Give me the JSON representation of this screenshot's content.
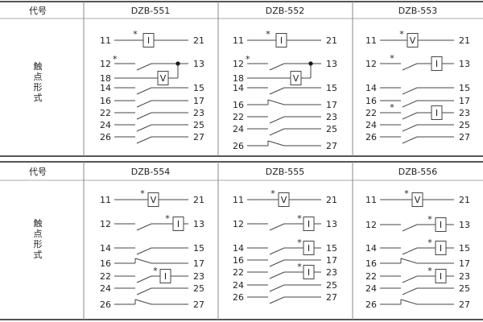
{
  "tables": [
    {
      "header_label": "代号",
      "side_label": [
        "触",
        "点",
        "形",
        "式"
      ],
      "models": [
        {
          "code": "DZB-551",
          "circuits": [
            {
              "left": "11",
              "right": "21",
              "coil": "I",
              "star": true
            },
            {
              "left": "12",
              "right": "13",
              "coil": null,
              "star": true
            },
            {
              "left": "18",
              "right": "",
              "coil": "V",
              "star": false
            },
            {
              "left": "14",
              "right": "15",
              "coil": null,
              "star": false
            },
            {
              "left": "16",
              "right": "17",
              "coil": null,
              "star": false
            },
            {
              "left": "22",
              "right": "23",
              "coil": null,
              "star": false
            },
            {
              "left": "24",
              "right": "25",
              "coil": null,
              "star": false
            },
            {
              "left": "26",
              "right": "27",
              "coil": null,
              "star": false
            }
          ]
        },
        {
          "code": "DZB-552",
          "circuits": [
            {
              "left": "11",
              "right": "21",
              "coil": "I",
              "star": true
            },
            {
              "left": "12",
              "right": "13",
              "coil": null,
              "star": true
            },
            {
              "left": "18",
              "right": "",
              "coil": "V",
              "star": false
            },
            {
              "left": "14",
              "right": "15",
              "coil": null,
              "star": false
            },
            {
              "left": "16",
              "right": "17",
              "coil": null,
              "star": false
            },
            {
              "left": "22",
              "right": "23",
              "coil": null,
              "star": false
            },
            {
              "left": "24",
              "right": "25",
              "coil": null,
              "star": false
            },
            {
              "left": "26",
              "right": "27",
              "coil": null,
              "star": false
            }
          ]
        },
        {
          "code": "DZB-553",
          "circuits": [
            {
              "left": "11",
              "right": "21",
              "coil": "V",
              "star": true
            },
            {
              "left": "12",
              "right": "13",
              "coil": "I",
              "star": true
            },
            {
              "left": "14",
              "right": "15",
              "coil": null,
              "star": false
            },
            {
              "left": "16",
              "right": "17",
              "coil": null,
              "star": false
            },
            {
              "left": "22",
              "right": "23",
              "coil": "I",
              "star": true
            },
            {
              "left": "24",
              "right": "25",
              "coil": null,
              "star": false
            },
            {
              "left": "26",
              "right": "27",
              "coil": null,
              "star": false
            }
          ]
        }
      ]
    },
    {
      "header_label": "代号",
      "side_label": [
        "触",
        "点",
        "形",
        "式"
      ],
      "models": [
        {
          "code": "DZB-554",
          "circuits": [
            {
              "left": "11",
              "right": "21",
              "coil": "V",
              "star": true
            },
            {
              "left": "12",
              "right": "13",
              "coil": "I",
              "star": true
            },
            {
              "left": "14",
              "right": "15",
              "coil": null,
              "star": false
            },
            {
              "left": "16",
              "right": "17",
              "coil": null,
              "star": false
            },
            {
              "left": "22",
              "right": "23",
              "coil": "I",
              "star": true
            },
            {
              "left": "24",
              "right": "25",
              "coil": null,
              "star": false
            },
            {
              "left": "26",
              "right": "27",
              "coil": null,
              "star": false
            }
          ]
        },
        {
          "code": "DZB-555",
          "circuits": [
            {
              "left": "11",
              "right": "21",
              "coil": "V",
              "star": true
            },
            {
              "left": "12",
              "right": "13",
              "coil": "I",
              "star": true
            },
            {
              "left": "14",
              "right": "15",
              "coil": "I",
              "star": true
            },
            {
              "left": "16",
              "right": "17",
              "coil": null,
              "star": false
            },
            {
              "left": "22",
              "right": "23",
              "coil": "I",
              "star": true
            },
            {
              "left": "24",
              "right": "25",
              "coil": null,
              "star": false
            },
            {
              "left": "26",
              "right": "27",
              "coil": null,
              "star": false
            }
          ]
        },
        {
          "code": "DZB-556",
          "circuits": [
            {
              "left": "11",
              "right": "21",
              "coil": "V",
              "star": true
            },
            {
              "left": "12",
              "right": "13",
              "coil": "I",
              "star": true
            },
            {
              "left": "14",
              "right": "15",
              "coil": "I",
              "star": true
            },
            {
              "left": "16",
              "right": "17",
              "coil": null,
              "star": false
            },
            {
              "left": "22",
              "right": "23",
              "coil": "I",
              "star": true
            },
            {
              "left": "24",
              "right": "25",
              "coil": null,
              "star": false
            },
            {
              "left": "26",
              "right": "27",
              "coil": null,
              "star": false
            }
          ]
        }
      ]
    }
  ]
}
